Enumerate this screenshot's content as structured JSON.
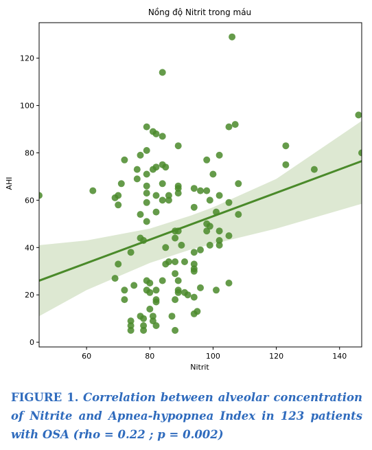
{
  "chart_data": {
    "type": "scatter",
    "title": "Nồng độ Nitrit trong máu",
    "xlabel": "Nitrit",
    "ylabel": "AHI",
    "xlim": [
      45,
      147
    ],
    "ylim": [
      -2,
      135
    ],
    "x_ticks": [
      60,
      80,
      100,
      120,
      140
    ],
    "y_ticks": [
      0,
      20,
      40,
      60,
      80,
      100,
      120
    ],
    "grid": false,
    "colors": {
      "points": "#4a8a2a",
      "regression_line": "#4a8a2a",
      "confidence_band": "#dde8d2"
    },
    "regression": {
      "x": [
        45,
        147
      ],
      "y": [
        26,
        76.5
      ]
    },
    "confidence_band": {
      "x": [
        45,
        60,
        80,
        93,
        100,
        120,
        147
      ],
      "lower": [
        11,
        22,
        33.5,
        39.2,
        41.5,
        48,
        58.5
      ],
      "upper": [
        41,
        43,
        48,
        53.5,
        57,
        69,
        93.5
      ]
    },
    "points": [
      {
        "x": 45,
        "y": 62
      },
      {
        "x": 62,
        "y": 64
      },
      {
        "x": 69,
        "y": 61
      },
      {
        "x": 70,
        "y": 62
      },
      {
        "x": 70,
        "y": 58
      },
      {
        "x": 71,
        "y": 67
      },
      {
        "x": 72,
        "y": 77
      },
      {
        "x": 69,
        "y": 27
      },
      {
        "x": 70,
        "y": 33
      },
      {
        "x": 72,
        "y": 22
      },
      {
        "x": 72,
        "y": 18
      },
      {
        "x": 74,
        "y": 38
      },
      {
        "x": 74,
        "y": 9
      },
      {
        "x": 74,
        "y": 7
      },
      {
        "x": 74,
        "y": 5
      },
      {
        "x": 75,
        "y": 24
      },
      {
        "x": 76,
        "y": 73
      },
      {
        "x": 76,
        "y": 69
      },
      {
        "x": 77,
        "y": 79
      },
      {
        "x": 77,
        "y": 54
      },
      {
        "x": 77,
        "y": 44
      },
      {
        "x": 78,
        "y": 43
      },
      {
        "x": 77,
        "y": 11
      },
      {
        "x": 78,
        "y": 10
      },
      {
        "x": 78,
        "y": 7
      },
      {
        "x": 78,
        "y": 5
      },
      {
        "x": 79,
        "y": 91
      },
      {
        "x": 79,
        "y": 81
      },
      {
        "x": 79,
        "y": 71
      },
      {
        "x": 79,
        "y": 66
      },
      {
        "x": 79,
        "y": 63
      },
      {
        "x": 79,
        "y": 59
      },
      {
        "x": 79,
        "y": 51
      },
      {
        "x": 79,
        "y": 26
      },
      {
        "x": 79,
        "y": 22
      },
      {
        "x": 80,
        "y": 25
      },
      {
        "x": 80,
        "y": 21
      },
      {
        "x": 80,
        "y": 14
      },
      {
        "x": 81,
        "y": 11
      },
      {
        "x": 81,
        "y": 9
      },
      {
        "x": 81,
        "y": 89
      },
      {
        "x": 81,
        "y": 73
      },
      {
        "x": 82,
        "y": 88
      },
      {
        "x": 82,
        "y": 74
      },
      {
        "x": 82,
        "y": 62
      },
      {
        "x": 82,
        "y": 55
      },
      {
        "x": 82,
        "y": 22
      },
      {
        "x": 82,
        "y": 18
      },
      {
        "x": 82,
        "y": 17
      },
      {
        "x": 82,
        "y": 7
      },
      {
        "x": 84,
        "y": 114
      },
      {
        "x": 84,
        "y": 87
      },
      {
        "x": 84,
        "y": 75
      },
      {
        "x": 84,
        "y": 67
      },
      {
        "x": 84,
        "y": 60
      },
      {
        "x": 84,
        "y": 26
      },
      {
        "x": 85,
        "y": 74
      },
      {
        "x": 85,
        "y": 40
      },
      {
        "x": 85,
        "y": 33
      },
      {
        "x": 86,
        "y": 62
      },
      {
        "x": 86,
        "y": 60
      },
      {
        "x": 86,
        "y": 34
      },
      {
        "x": 87,
        "y": 11
      },
      {
        "x": 88,
        "y": 47
      },
      {
        "x": 88,
        "y": 44
      },
      {
        "x": 88,
        "y": 34
      },
      {
        "x": 88,
        "y": 29
      },
      {
        "x": 88,
        "y": 18
      },
      {
        "x": 88,
        "y": 5
      },
      {
        "x": 89,
        "y": 83
      },
      {
        "x": 89,
        "y": 66
      },
      {
        "x": 89,
        "y": 65
      },
      {
        "x": 89,
        "y": 63
      },
      {
        "x": 89,
        "y": 47
      },
      {
        "x": 89,
        "y": 26
      },
      {
        "x": 89,
        "y": 22
      },
      {
        "x": 89,
        "y": 21
      },
      {
        "x": 90,
        "y": 41
      },
      {
        "x": 91,
        "y": 34
      },
      {
        "x": 91,
        "y": 21
      },
      {
        "x": 92,
        "y": 20
      },
      {
        "x": 94,
        "y": 65
      },
      {
        "x": 94,
        "y": 57
      },
      {
        "x": 94,
        "y": 38
      },
      {
        "x": 94,
        "y": 33
      },
      {
        "x": 94,
        "y": 31
      },
      {
        "x": 94,
        "y": 30
      },
      {
        "x": 94,
        "y": 19
      },
      {
        "x": 94,
        "y": 12
      },
      {
        "x": 95,
        "y": 13
      },
      {
        "x": 96,
        "y": 64
      },
      {
        "x": 96,
        "y": 39
      },
      {
        "x": 96,
        "y": 23
      },
      {
        "x": 98,
        "y": 77
      },
      {
        "x": 98,
        "y": 64
      },
      {
        "x": 98,
        "y": 50
      },
      {
        "x": 98,
        "y": 47
      },
      {
        "x": 99,
        "y": 60
      },
      {
        "x": 99,
        "y": 49
      },
      {
        "x": 99,
        "y": 41
      },
      {
        "x": 100,
        "y": 71
      },
      {
        "x": 101,
        "y": 55
      },
      {
        "x": 101,
        "y": 22
      },
      {
        "x": 102,
        "y": 79
      },
      {
        "x": 102,
        "y": 62
      },
      {
        "x": 102,
        "y": 47
      },
      {
        "x": 102,
        "y": 43
      },
      {
        "x": 102,
        "y": 41
      },
      {
        "x": 105,
        "y": 91
      },
      {
        "x": 105,
        "y": 59
      },
      {
        "x": 105,
        "y": 45
      },
      {
        "x": 105,
        "y": 25
      },
      {
        "x": 106,
        "y": 129
      },
      {
        "x": 107,
        "y": 92
      },
      {
        "x": 108,
        "y": 67
      },
      {
        "x": 108,
        "y": 54
      },
      {
        "x": 123,
        "y": 83
      },
      {
        "x": 123,
        "y": 75
      },
      {
        "x": 132,
        "y": 73
      },
      {
        "x": 146,
        "y": 96
      },
      {
        "x": 147,
        "y": 80
      }
    ]
  },
  "caption": {
    "label": "FIGURE 1.",
    "text": "Correlation between alveolar concentration of Nitrite and Apnea-hypopnea Index in 123 patients with OSA (rho = 0.22 ; p = 0.002)"
  }
}
